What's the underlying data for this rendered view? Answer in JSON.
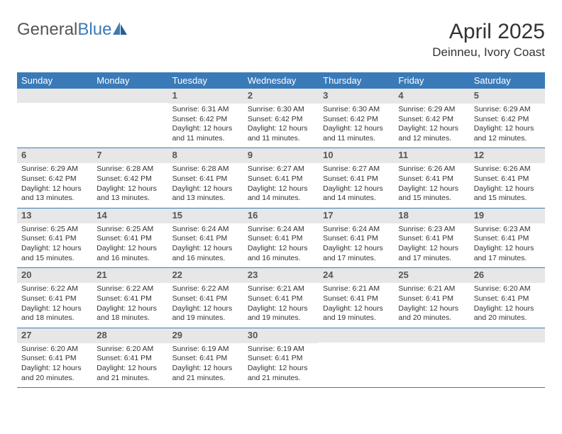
{
  "logo": {
    "text1": "General",
    "text2": "Blue"
  },
  "title": "April 2025",
  "location": "Deinneu, Ivory Coast",
  "weekdays": [
    "Sunday",
    "Monday",
    "Tuesday",
    "Wednesday",
    "Thursday",
    "Friday",
    "Saturday"
  ],
  "colors": {
    "header_bg": "#3a7ab8",
    "daynum_bg": "#e7e7e7",
    "text": "#333333"
  },
  "weeks": [
    [
      {
        "n": "",
        "sr": "",
        "ss": "",
        "dl": ""
      },
      {
        "n": "",
        "sr": "",
        "ss": "",
        "dl": ""
      },
      {
        "n": "1",
        "sr": "Sunrise: 6:31 AM",
        "ss": "Sunset: 6:42 PM",
        "dl": "Daylight: 12 hours and 11 minutes."
      },
      {
        "n": "2",
        "sr": "Sunrise: 6:30 AM",
        "ss": "Sunset: 6:42 PM",
        "dl": "Daylight: 12 hours and 11 minutes."
      },
      {
        "n": "3",
        "sr": "Sunrise: 6:30 AM",
        "ss": "Sunset: 6:42 PM",
        "dl": "Daylight: 12 hours and 11 minutes."
      },
      {
        "n": "4",
        "sr": "Sunrise: 6:29 AM",
        "ss": "Sunset: 6:42 PM",
        "dl": "Daylight: 12 hours and 12 minutes."
      },
      {
        "n": "5",
        "sr": "Sunrise: 6:29 AM",
        "ss": "Sunset: 6:42 PM",
        "dl": "Daylight: 12 hours and 12 minutes."
      }
    ],
    [
      {
        "n": "6",
        "sr": "Sunrise: 6:29 AM",
        "ss": "Sunset: 6:42 PM",
        "dl": "Daylight: 12 hours and 13 minutes."
      },
      {
        "n": "7",
        "sr": "Sunrise: 6:28 AM",
        "ss": "Sunset: 6:42 PM",
        "dl": "Daylight: 12 hours and 13 minutes."
      },
      {
        "n": "8",
        "sr": "Sunrise: 6:28 AM",
        "ss": "Sunset: 6:41 PM",
        "dl": "Daylight: 12 hours and 13 minutes."
      },
      {
        "n": "9",
        "sr": "Sunrise: 6:27 AM",
        "ss": "Sunset: 6:41 PM",
        "dl": "Daylight: 12 hours and 14 minutes."
      },
      {
        "n": "10",
        "sr": "Sunrise: 6:27 AM",
        "ss": "Sunset: 6:41 PM",
        "dl": "Daylight: 12 hours and 14 minutes."
      },
      {
        "n": "11",
        "sr": "Sunrise: 6:26 AM",
        "ss": "Sunset: 6:41 PM",
        "dl": "Daylight: 12 hours and 15 minutes."
      },
      {
        "n": "12",
        "sr": "Sunrise: 6:26 AM",
        "ss": "Sunset: 6:41 PM",
        "dl": "Daylight: 12 hours and 15 minutes."
      }
    ],
    [
      {
        "n": "13",
        "sr": "Sunrise: 6:25 AM",
        "ss": "Sunset: 6:41 PM",
        "dl": "Daylight: 12 hours and 15 minutes."
      },
      {
        "n": "14",
        "sr": "Sunrise: 6:25 AM",
        "ss": "Sunset: 6:41 PM",
        "dl": "Daylight: 12 hours and 16 minutes."
      },
      {
        "n": "15",
        "sr": "Sunrise: 6:24 AM",
        "ss": "Sunset: 6:41 PM",
        "dl": "Daylight: 12 hours and 16 minutes."
      },
      {
        "n": "16",
        "sr": "Sunrise: 6:24 AM",
        "ss": "Sunset: 6:41 PM",
        "dl": "Daylight: 12 hours and 16 minutes."
      },
      {
        "n": "17",
        "sr": "Sunrise: 6:24 AM",
        "ss": "Sunset: 6:41 PM",
        "dl": "Daylight: 12 hours and 17 minutes."
      },
      {
        "n": "18",
        "sr": "Sunrise: 6:23 AM",
        "ss": "Sunset: 6:41 PM",
        "dl": "Daylight: 12 hours and 17 minutes."
      },
      {
        "n": "19",
        "sr": "Sunrise: 6:23 AM",
        "ss": "Sunset: 6:41 PM",
        "dl": "Daylight: 12 hours and 17 minutes."
      }
    ],
    [
      {
        "n": "20",
        "sr": "Sunrise: 6:22 AM",
        "ss": "Sunset: 6:41 PM",
        "dl": "Daylight: 12 hours and 18 minutes."
      },
      {
        "n": "21",
        "sr": "Sunrise: 6:22 AM",
        "ss": "Sunset: 6:41 PM",
        "dl": "Daylight: 12 hours and 18 minutes."
      },
      {
        "n": "22",
        "sr": "Sunrise: 6:22 AM",
        "ss": "Sunset: 6:41 PM",
        "dl": "Daylight: 12 hours and 19 minutes."
      },
      {
        "n": "23",
        "sr": "Sunrise: 6:21 AM",
        "ss": "Sunset: 6:41 PM",
        "dl": "Daylight: 12 hours and 19 minutes."
      },
      {
        "n": "24",
        "sr": "Sunrise: 6:21 AM",
        "ss": "Sunset: 6:41 PM",
        "dl": "Daylight: 12 hours and 19 minutes."
      },
      {
        "n": "25",
        "sr": "Sunrise: 6:21 AM",
        "ss": "Sunset: 6:41 PM",
        "dl": "Daylight: 12 hours and 20 minutes."
      },
      {
        "n": "26",
        "sr": "Sunrise: 6:20 AM",
        "ss": "Sunset: 6:41 PM",
        "dl": "Daylight: 12 hours and 20 minutes."
      }
    ],
    [
      {
        "n": "27",
        "sr": "Sunrise: 6:20 AM",
        "ss": "Sunset: 6:41 PM",
        "dl": "Daylight: 12 hours and 20 minutes."
      },
      {
        "n": "28",
        "sr": "Sunrise: 6:20 AM",
        "ss": "Sunset: 6:41 PM",
        "dl": "Daylight: 12 hours and 21 minutes."
      },
      {
        "n": "29",
        "sr": "Sunrise: 6:19 AM",
        "ss": "Sunset: 6:41 PM",
        "dl": "Daylight: 12 hours and 21 minutes."
      },
      {
        "n": "30",
        "sr": "Sunrise: 6:19 AM",
        "ss": "Sunset: 6:41 PM",
        "dl": "Daylight: 12 hours and 21 minutes."
      },
      {
        "n": "",
        "sr": "",
        "ss": "",
        "dl": ""
      },
      {
        "n": "",
        "sr": "",
        "ss": "",
        "dl": ""
      },
      {
        "n": "",
        "sr": "",
        "ss": "",
        "dl": ""
      }
    ]
  ]
}
